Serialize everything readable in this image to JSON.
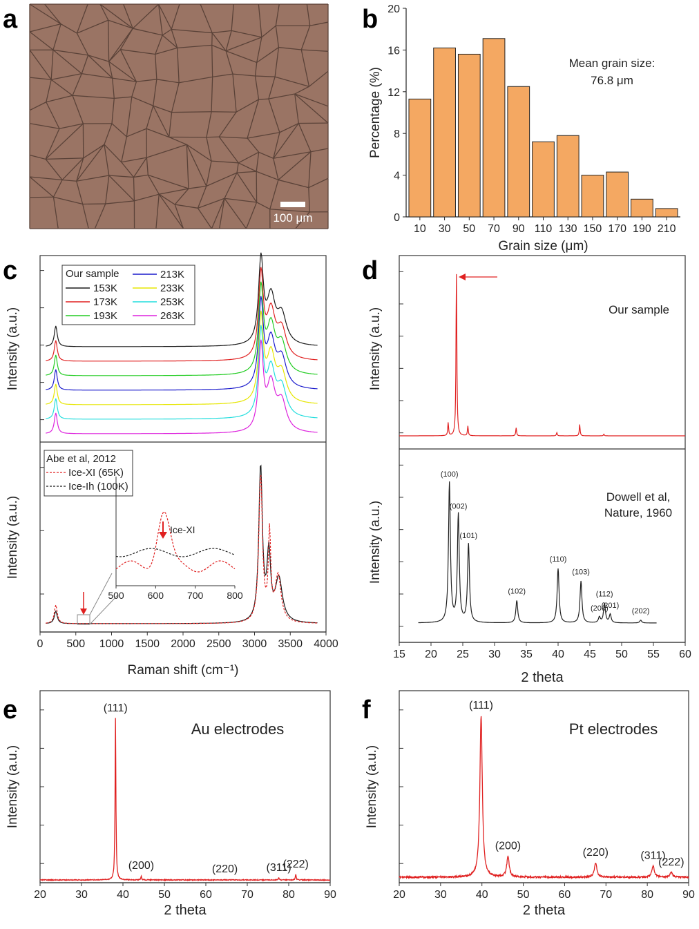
{
  "panel_letters": {
    "a": "a",
    "b": "b",
    "c": "c",
    "d": "d",
    "e": "e",
    "f": "f"
  },
  "colors": {
    "bar_fill": "#f4a862",
    "micrograph_bg": "#9b7565",
    "grain_boundary": "#5a4238",
    "red": "#e02020",
    "black": "#202020"
  },
  "panel_a": {
    "scale_bar_label": "100 μm"
  },
  "chart_data": [
    {
      "id": "b",
      "type": "bar",
      "categories": [
        "10",
        "30",
        "50",
        "70",
        "90",
        "110",
        "130",
        "150",
        "170",
        "190",
        "210"
      ],
      "values": [
        11.3,
        16.2,
        15.6,
        17.1,
        12.5,
        7.2,
        7.8,
        4.0,
        4.3,
        1.7,
        0.8
      ],
      "xlabel": "Grain size (μm)",
      "ylabel": "Percentage (%)",
      "ylim": [
        0,
        20
      ],
      "yticks": [
        0,
        4,
        8,
        12,
        16,
        20
      ],
      "annotation": [
        "Mean grain size:",
        "76.8 μm"
      ]
    },
    {
      "id": "c",
      "type": "line",
      "xlabel": "Raman shift (cm⁻¹)",
      "xlim": [
        0,
        4000
      ],
      "xticks": [
        0,
        500,
        1000,
        1500,
        2000,
        2500,
        3000,
        3500,
        4000
      ],
      "top": {
        "ylabel": "Intensity (a.u.)",
        "legend_title": "Our sample",
        "series": [
          {
            "name": "153K",
            "color": "#1a1a1a"
          },
          {
            "name": "173K",
            "color": "#e02020"
          },
          {
            "name": "193K",
            "color": "#22cc22"
          },
          {
            "name": "213K",
            "color": "#1a1acc"
          },
          {
            "name": "233K",
            "color": "#e6e600"
          },
          {
            "name": "253K",
            "color": "#22dddd"
          },
          {
            "name": "263K",
            "color": "#dd22dd"
          }
        ]
      },
      "bottom": {
        "ylabel": "Intensity (a.u.)",
        "legend_title": "Abe et al, 2012",
        "series": [
          {
            "name": "Ice-XI (65K)",
            "color": "#e02020"
          },
          {
            "name": "Ice-Ih (100K)",
            "color": "#1a1a1a"
          }
        ],
        "inset": {
          "label": "Ice-XI",
          "xlim": [
            500,
            800
          ],
          "xticks": [
            500,
            600,
            700,
            800
          ]
        }
      }
    },
    {
      "id": "d",
      "type": "line",
      "xlabel": "2 theta",
      "xlim": [
        15,
        60
      ],
      "xticks": [
        15,
        20,
        25,
        30,
        35,
        40,
        45,
        50,
        55,
        60
      ],
      "top": {
        "ylabel": "Intensity (a.u.)",
        "label": "Our sample",
        "peaks": [
          {
            "x": 22.7,
            "h": 0.08
          },
          {
            "x": 24.0,
            "h": 1.0
          },
          {
            "x": 25.8,
            "h": 0.06
          },
          {
            "x": 33.4,
            "h": 0.05
          },
          {
            "x": 39.8,
            "h": 0.02
          },
          {
            "x": 43.4,
            "h": 0.07
          },
          {
            "x": 47.2,
            "h": 0.01
          }
        ]
      },
      "bottom": {
        "ylabel": "Intensity (a.u.)",
        "label": [
          "Dowell et al,",
          "Nature, 1960"
        ],
        "peaks": [
          {
            "x": 22.9,
            "h": 1.0,
            "label": "(100)"
          },
          {
            "x": 24.3,
            "h": 0.77,
            "label": "(002)"
          },
          {
            "x": 25.9,
            "h": 0.56,
            "label": "(101)"
          },
          {
            "x": 33.5,
            "h": 0.16,
            "label": "(102)"
          },
          {
            "x": 40.0,
            "h": 0.39,
            "label": "(110)"
          },
          {
            "x": 43.6,
            "h": 0.3,
            "label": "(103)"
          },
          {
            "x": 46.5,
            "h": 0.04,
            "label": "(200)"
          },
          {
            "x": 47.3,
            "h": 0.14,
            "label": "(112)"
          },
          {
            "x": 48.2,
            "h": 0.06,
            "label": "(201)"
          },
          {
            "x": 53.0,
            "h": 0.02,
            "label": "(202)"
          }
        ]
      }
    },
    {
      "id": "e",
      "type": "line",
      "label": "Au electrodes",
      "xlabel": "2 theta",
      "ylabel": "Intensity (a.u.)",
      "xlim": [
        20,
        90
      ],
      "xticks": [
        20,
        30,
        40,
        50,
        60,
        70,
        80,
        90
      ],
      "peaks": [
        {
          "x": 38.2,
          "h": 1.0,
          "label": "(111)"
        },
        {
          "x": 44.4,
          "h": 0.025,
          "label": "(200)"
        },
        {
          "x": 64.6,
          "h": 0.004,
          "label": "(220)"
        },
        {
          "x": 77.6,
          "h": 0.012,
          "label": "(311)"
        },
        {
          "x": 81.7,
          "h": 0.035,
          "label": "(222)"
        }
      ]
    },
    {
      "id": "f",
      "type": "line",
      "label": "Pt electrodes",
      "xlabel": "2 theta",
      "ylabel": "Intensity (a.u.)",
      "xlim": [
        20,
        90
      ],
      "xticks": [
        20,
        30,
        40,
        50,
        60,
        70,
        80,
        90
      ],
      "peaks": [
        {
          "x": 39.8,
          "h": 1.0,
          "label": "(111)"
        },
        {
          "x": 46.3,
          "h": 0.13,
          "label": "(200)"
        },
        {
          "x": 67.5,
          "h": 0.09,
          "label": "(220)"
        },
        {
          "x": 81.4,
          "h": 0.07,
          "label": "(311)"
        },
        {
          "x": 85.8,
          "h": 0.03,
          "label": "(222)"
        }
      ]
    }
  ]
}
